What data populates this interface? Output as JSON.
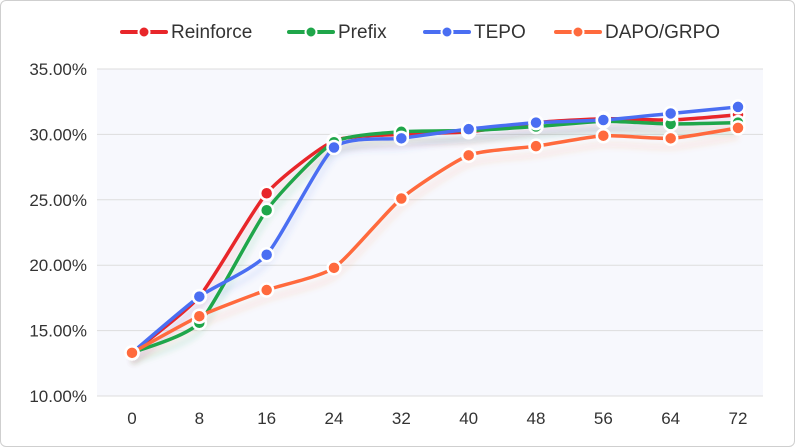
{
  "chart_data": {
    "type": "line",
    "title": "",
    "xlabel": "",
    "ylabel": "",
    "categories": [
      0,
      8,
      16,
      24,
      32,
      40,
      48,
      56,
      64,
      72
    ],
    "x_tick_labels": [
      "0",
      "8",
      "16",
      "24",
      "32",
      "40",
      "48",
      "56",
      "64",
      "72"
    ],
    "ylim": [
      10,
      35
    ],
    "y_ticks": [
      10,
      15,
      20,
      25,
      30,
      35
    ],
    "y_tick_labels": [
      "10.00%",
      "15.00%",
      "20.00%",
      "25.00%",
      "30.00%",
      "35.00%"
    ],
    "legend_position": "top-center",
    "grid": "horizontal",
    "series": [
      {
        "name": "Reinforce",
        "color": "#e8262a",
        "values": [
          13.3,
          17.6,
          25.5,
          29.5,
          30.0,
          30.2,
          30.9,
          31.2,
          31.1,
          31.5
        ]
      },
      {
        "name": "Prefix",
        "color": "#1fa64a",
        "values": [
          13.3,
          15.6,
          24.2,
          29.4,
          30.2,
          30.3,
          30.6,
          31.0,
          30.8,
          30.9
        ]
      },
      {
        "name": "TEPO",
        "color": "#4a6ef2",
        "values": [
          13.3,
          17.6,
          20.8,
          29.0,
          29.7,
          30.4,
          30.9,
          31.1,
          31.6,
          32.1
        ]
      },
      {
        "name": "DAPO/GRPO",
        "color": "#ff6a3d",
        "values": [
          13.3,
          16.1,
          18.1,
          19.8,
          25.1,
          28.4,
          29.1,
          29.9,
          29.7,
          30.5
        ]
      }
    ]
  }
}
